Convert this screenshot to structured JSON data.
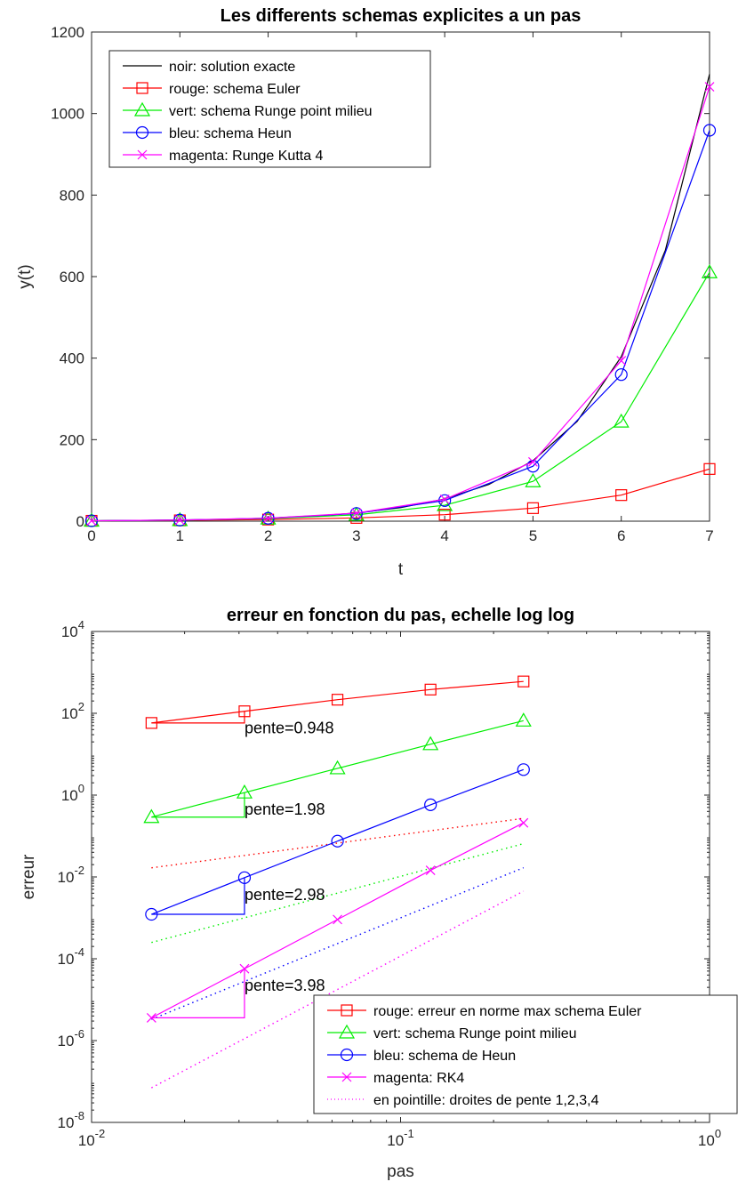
{
  "chart_data": [
    {
      "type": "line",
      "title": "Les differents schemas explicites a un pas",
      "xlabel": "t",
      "ylabel": "y(t)",
      "xlim": [
        0,
        7
      ],
      "ylim": [
        0,
        1200
      ],
      "xticks": [
        0,
        1,
        2,
        3,
        4,
        5,
        6,
        7
      ],
      "yticks": [
        0,
        200,
        400,
        600,
        800,
        1000,
        1200
      ],
      "legend_position": "top-left",
      "series": [
        {
          "name": "noir: solution exacte",
          "color": "#000000",
          "marker": "none",
          "x": [
            0,
            0.5,
            1,
            1.5,
            2,
            2.5,
            3,
            3.5,
            4,
            4.5,
            5,
            5.5,
            6,
            6.5,
            7
          ],
          "values": [
            1,
            1.65,
            2.72,
            4.48,
            7.39,
            12.2,
            20.1,
            33.1,
            54.6,
            90,
            148.4,
            244.7,
            403.4,
            665,
            1096.6
          ]
        },
        {
          "name": "rouge: schema Euler",
          "color": "#ff0000",
          "marker": "square",
          "x": [
            0,
            1,
            2,
            3,
            4,
            5,
            6,
            7
          ],
          "values": [
            1,
            2,
            4,
            8,
            16,
            32,
            64,
            128
          ]
        },
        {
          "name": "vert: schema  Runge point milieu",
          "color": "#00ee00",
          "marker": "triangle",
          "x": [
            0,
            1,
            2,
            3,
            4,
            5,
            6,
            7
          ],
          "values": [
            1,
            2.5,
            6.25,
            15.6,
            39.1,
            97.7,
            244.1,
            610.4
          ]
        },
        {
          "name": "bleu: schema Heun",
          "color": "#0000ff",
          "marker": "circle",
          "x": [
            0,
            1,
            2,
            3,
            4,
            5,
            6,
            7
          ],
          "values": [
            1,
            2.67,
            7.11,
            18.96,
            50.6,
            134.8,
            359.6,
            958.9
          ]
        },
        {
          "name": "magenta: Runge Kutta 4",
          "color": "#ff00ff",
          "marker": "x",
          "x": [
            0,
            1,
            2,
            3,
            4,
            5,
            6,
            7
          ],
          "values": [
            1,
            2.71,
            7.33,
            19.85,
            53.7,
            145.4,
            393.6,
            1065.6
          ]
        }
      ]
    },
    {
      "type": "line",
      "scale": "loglog",
      "title": "erreur en  fonction du pas, echelle log log",
      "xlabel": "pas",
      "ylabel": "erreur",
      "xlim": [
        0.01,
        1
      ],
      "ylim": [
        1e-08,
        10000
      ],
      "xticks": [
        0.01,
        0.1,
        1
      ],
      "yticks": [
        1e-08,
        1e-06,
        0.0001,
        0.01,
        1,
        100,
        10000
      ],
      "xtick_labels": [
        {
          "base": "10",
          "exp": "-2"
        },
        {
          "base": "10",
          "exp": "-1"
        },
        {
          "base": "10",
          "exp": "0"
        }
      ],
      "ytick_labels": [
        {
          "base": "10",
          "exp": "-8"
        },
        {
          "base": "10",
          "exp": "-6"
        },
        {
          "base": "10",
          "exp": "-4"
        },
        {
          "base": "10",
          "exp": "-2"
        },
        {
          "base": "10",
          "exp": "0"
        },
        {
          "base": "10",
          "exp": "2"
        },
        {
          "base": "10",
          "exp": "4"
        }
      ],
      "legend_position": "bottom-right",
      "series": [
        {
          "name": "rouge: erreur en norme max schema Euler",
          "color": "#ff0000",
          "marker": "square",
          "style": "solid",
          "x": [
            0.015625,
            0.03125,
            0.0625,
            0.125,
            0.25
          ],
          "values": [
            58,
            112,
            215,
            380,
            600
          ]
        },
        {
          "name": "vert: schema Runge point milieu",
          "color": "#00ee00",
          "marker": "triangle",
          "style": "solid",
          "x": [
            0.015625,
            0.03125,
            0.0625,
            0.125,
            0.25
          ],
          "values": [
            0.29,
            1.15,
            4.5,
            17.5,
            66
          ]
        },
        {
          "name": "bleu: schema de Heun",
          "color": "#0000ff",
          "marker": "circle",
          "style": "solid",
          "x": [
            0.015625,
            0.03125,
            0.0625,
            0.125,
            0.25
          ],
          "values": [
            0.00122,
            0.0096,
            0.075,
            0.58,
            4.2
          ]
        },
        {
          "name": "magenta: RK4",
          "color": "#ff00ff",
          "marker": "x",
          "style": "solid",
          "x": [
            0.015625,
            0.03125,
            0.0625,
            0.125,
            0.25
          ],
          "values": [
            3.6e-06,
            5.7e-05,
            0.00091,
            0.0145,
            0.21
          ]
        },
        {
          "name": "en pointille: droites de pente 1,2,3,4",
          "color": "#ff00ff",
          "marker": "none",
          "style": "dotted",
          "x": [
            0.015625,
            0.25
          ],
          "values": [
            7e-08,
            0.0045
          ]
        }
      ],
      "reference_lines": [
        {
          "color": "#ff0000",
          "style": "dotted",
          "x": [
            0.015625,
            0.25
          ],
          "values": [
            0.0167,
            0.27
          ]
        },
        {
          "color": "#00ee00",
          "style": "dotted",
          "x": [
            0.015625,
            0.25
          ],
          "values": [
            0.00025,
            0.065
          ]
        },
        {
          "color": "#0000ff",
          "style": "dotted",
          "x": [
            0.015625,
            0.25
          ],
          "values": [
            3.3e-06,
            0.0168
          ]
        },
        {
          "color": "#ff00ff",
          "style": "dotted",
          "x": [
            0.015625,
            0.25
          ],
          "values": [
            7e-08,
            0.0045
          ]
        }
      ],
      "slope_triangles": [
        {
          "color": "#ff0000",
          "x": [
            0.015625,
            0.03125
          ],
          "values": [
            58,
            112
          ],
          "label": "pente=0.948"
        },
        {
          "color": "#00ee00",
          "x": [
            0.015625,
            0.03125
          ],
          "values": [
            0.29,
            1.15
          ],
          "label": "pente=1.98"
        },
        {
          "color": "#0000ff",
          "x": [
            0.015625,
            0.03125
          ],
          "values": [
            0.00122,
            0.0096
          ],
          "label": "pente=2.98"
        },
        {
          "color": "#ff00ff",
          "x": [
            0.015625,
            0.03125
          ],
          "values": [
            3.6e-06,
            5.7e-05
          ],
          "label": "pente=3.98"
        }
      ]
    }
  ]
}
